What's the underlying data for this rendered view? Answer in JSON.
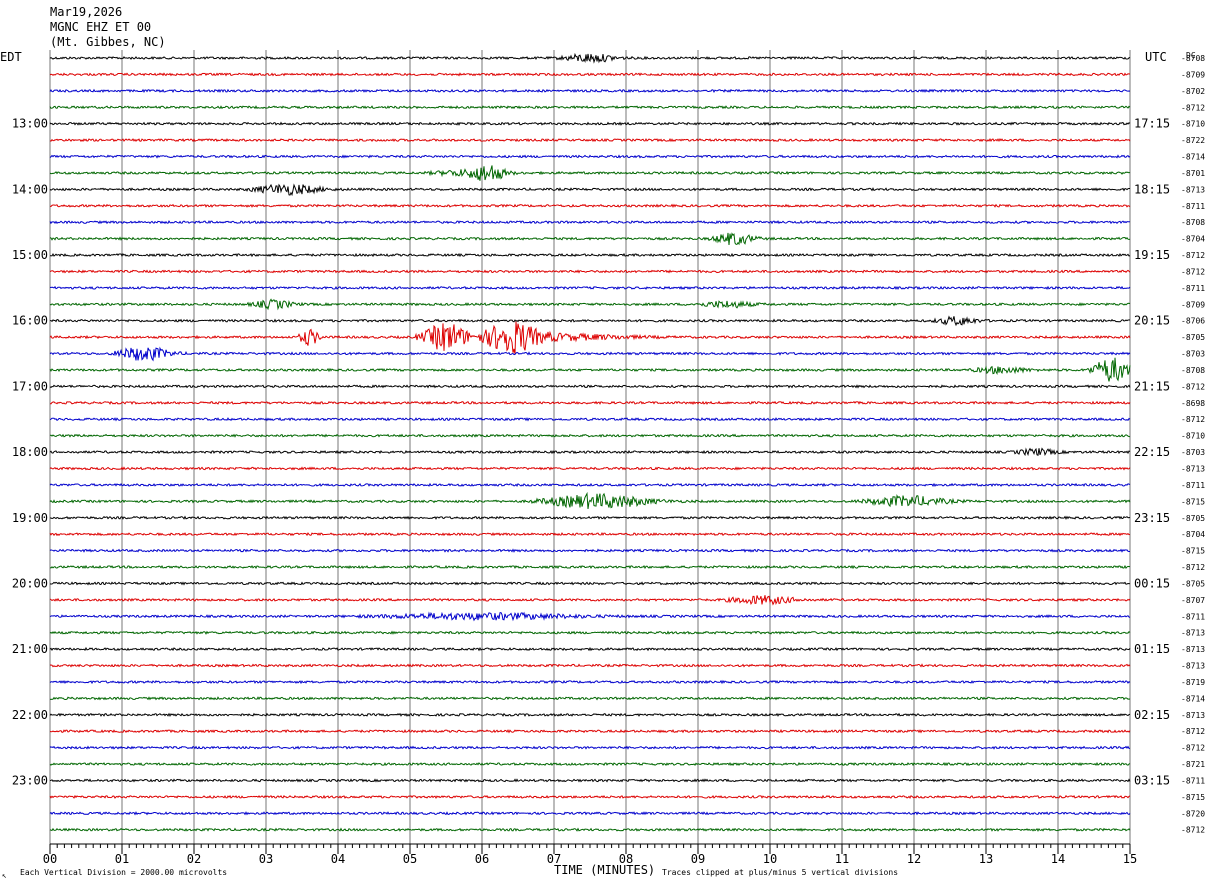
{
  "header": {
    "date": "Mar19,2026",
    "station": "MGNC EHZ ET 00",
    "location": "(Mt. Gibbes, NC)"
  },
  "labels": {
    "left_tz": "EDT",
    "right_tz": "UTC",
    "dc_header": "DC",
    "xlabel": "TIME (MINUTES)",
    "footer_left": "Each Vertical Division = 2000.00 microvolts",
    "footer_right": "Traces clipped at plus/minus 5 vertical divisions",
    "corner_mark": "↖"
  },
  "colors": [
    "#000000",
    "#dd0000",
    "#0000cc",
    "#006600"
  ],
  "chart_data": {
    "type": "line",
    "title": "MGNC EHZ ET 00 (Mt. Gibbes, NC)",
    "xlabel": "TIME (MINUTES)",
    "xlim": [
      0,
      15
    ],
    "x_ticks": [
      "00",
      "01",
      "02",
      "03",
      "04",
      "05",
      "06",
      "07",
      "08",
      "09",
      "10",
      "11",
      "12",
      "13",
      "14",
      "15"
    ],
    "rows": 48,
    "row_minutes": 15,
    "left_hour_labels": [
      "13:00",
      "14:00",
      "15:00",
      "16:00",
      "17:00",
      "18:00",
      "19:00",
      "20:00",
      "21:00",
      "22:00",
      "23:00"
    ],
    "right_hour_labels": [
      "17:15",
      "18:15",
      "19:15",
      "20:15",
      "21:15",
      "22:15",
      "23:15",
      "00:15",
      "01:15",
      "02:15",
      "03:15"
    ],
    "dc_offsets": [
      "-8708",
      "-8709",
      "-8702",
      "-8712",
      "-8710",
      "-8722",
      "-8714",
      "-8701",
      "-8713",
      "-8711",
      "-8708",
      "-8704",
      "-8712",
      "-8712",
      "-8711",
      "-8709",
      "-8706",
      "-8705",
      "-8703",
      "-8708",
      "-8712",
      "-8698",
      "-8712",
      "-8710",
      "-8703",
      "-8713",
      "-8711",
      "-8715",
      "-8705",
      "-8704",
      "-8715",
      "-8712",
      "-8705",
      "-8707",
      "-8711",
      "-8713",
      "-8713",
      "-8713",
      "-8719",
      "-8714",
      "-8713",
      "-8712",
      "-8712",
      "-8721",
      "-8711",
      "-8715",
      "-8720",
      "-8712"
    ],
    "events": [
      {
        "row": 0,
        "minute": 7.5,
        "width": 0.4,
        "amp": 4
      },
      {
        "row": 7,
        "minute": 5.8,
        "width": 0.5,
        "amp": 3
      },
      {
        "row": 7,
        "minute": 6.1,
        "width": 0.25,
        "amp": 7
      },
      {
        "row": 8,
        "minute": 3.3,
        "width": 0.5,
        "amp": 5
      },
      {
        "row": 11,
        "minute": 9.5,
        "width": 0.3,
        "amp": 6
      },
      {
        "row": 15,
        "minute": 3.1,
        "width": 0.3,
        "amp": 4
      },
      {
        "row": 15,
        "minute": 9.4,
        "width": 0.4,
        "amp": 3
      },
      {
        "row": 16,
        "minute": 12.6,
        "width": 0.3,
        "amp": 4
      },
      {
        "row": 17,
        "minute": 3.6,
        "width": 0.15,
        "amp": 8
      },
      {
        "row": 17,
        "minute": 5.5,
        "width": 0.35,
        "amp": 14
      },
      {
        "row": 17,
        "minute": 6.4,
        "width": 0.4,
        "amp": 15
      },
      {
        "row": 17,
        "minute": 7.0,
        "width": 1.2,
        "amp": 3
      },
      {
        "row": 18,
        "minute": 1.3,
        "width": 0.4,
        "amp": 7
      },
      {
        "row": 19,
        "minute": 13.2,
        "width": 0.4,
        "amp": 3
      },
      {
        "row": 19,
        "minute": 14.75,
        "width": 0.3,
        "amp": 12
      },
      {
        "row": 24,
        "minute": 13.7,
        "width": 0.3,
        "amp": 3
      },
      {
        "row": 27,
        "minute": 7.6,
        "width": 0.8,
        "amp": 7
      },
      {
        "row": 27,
        "minute": 11.9,
        "width": 0.6,
        "amp": 5
      },
      {
        "row": 33,
        "minute": 9.9,
        "width": 0.5,
        "amp": 4
      },
      {
        "row": 34,
        "minute": 6.0,
        "width": 1.5,
        "amp": 3
      }
    ]
  }
}
